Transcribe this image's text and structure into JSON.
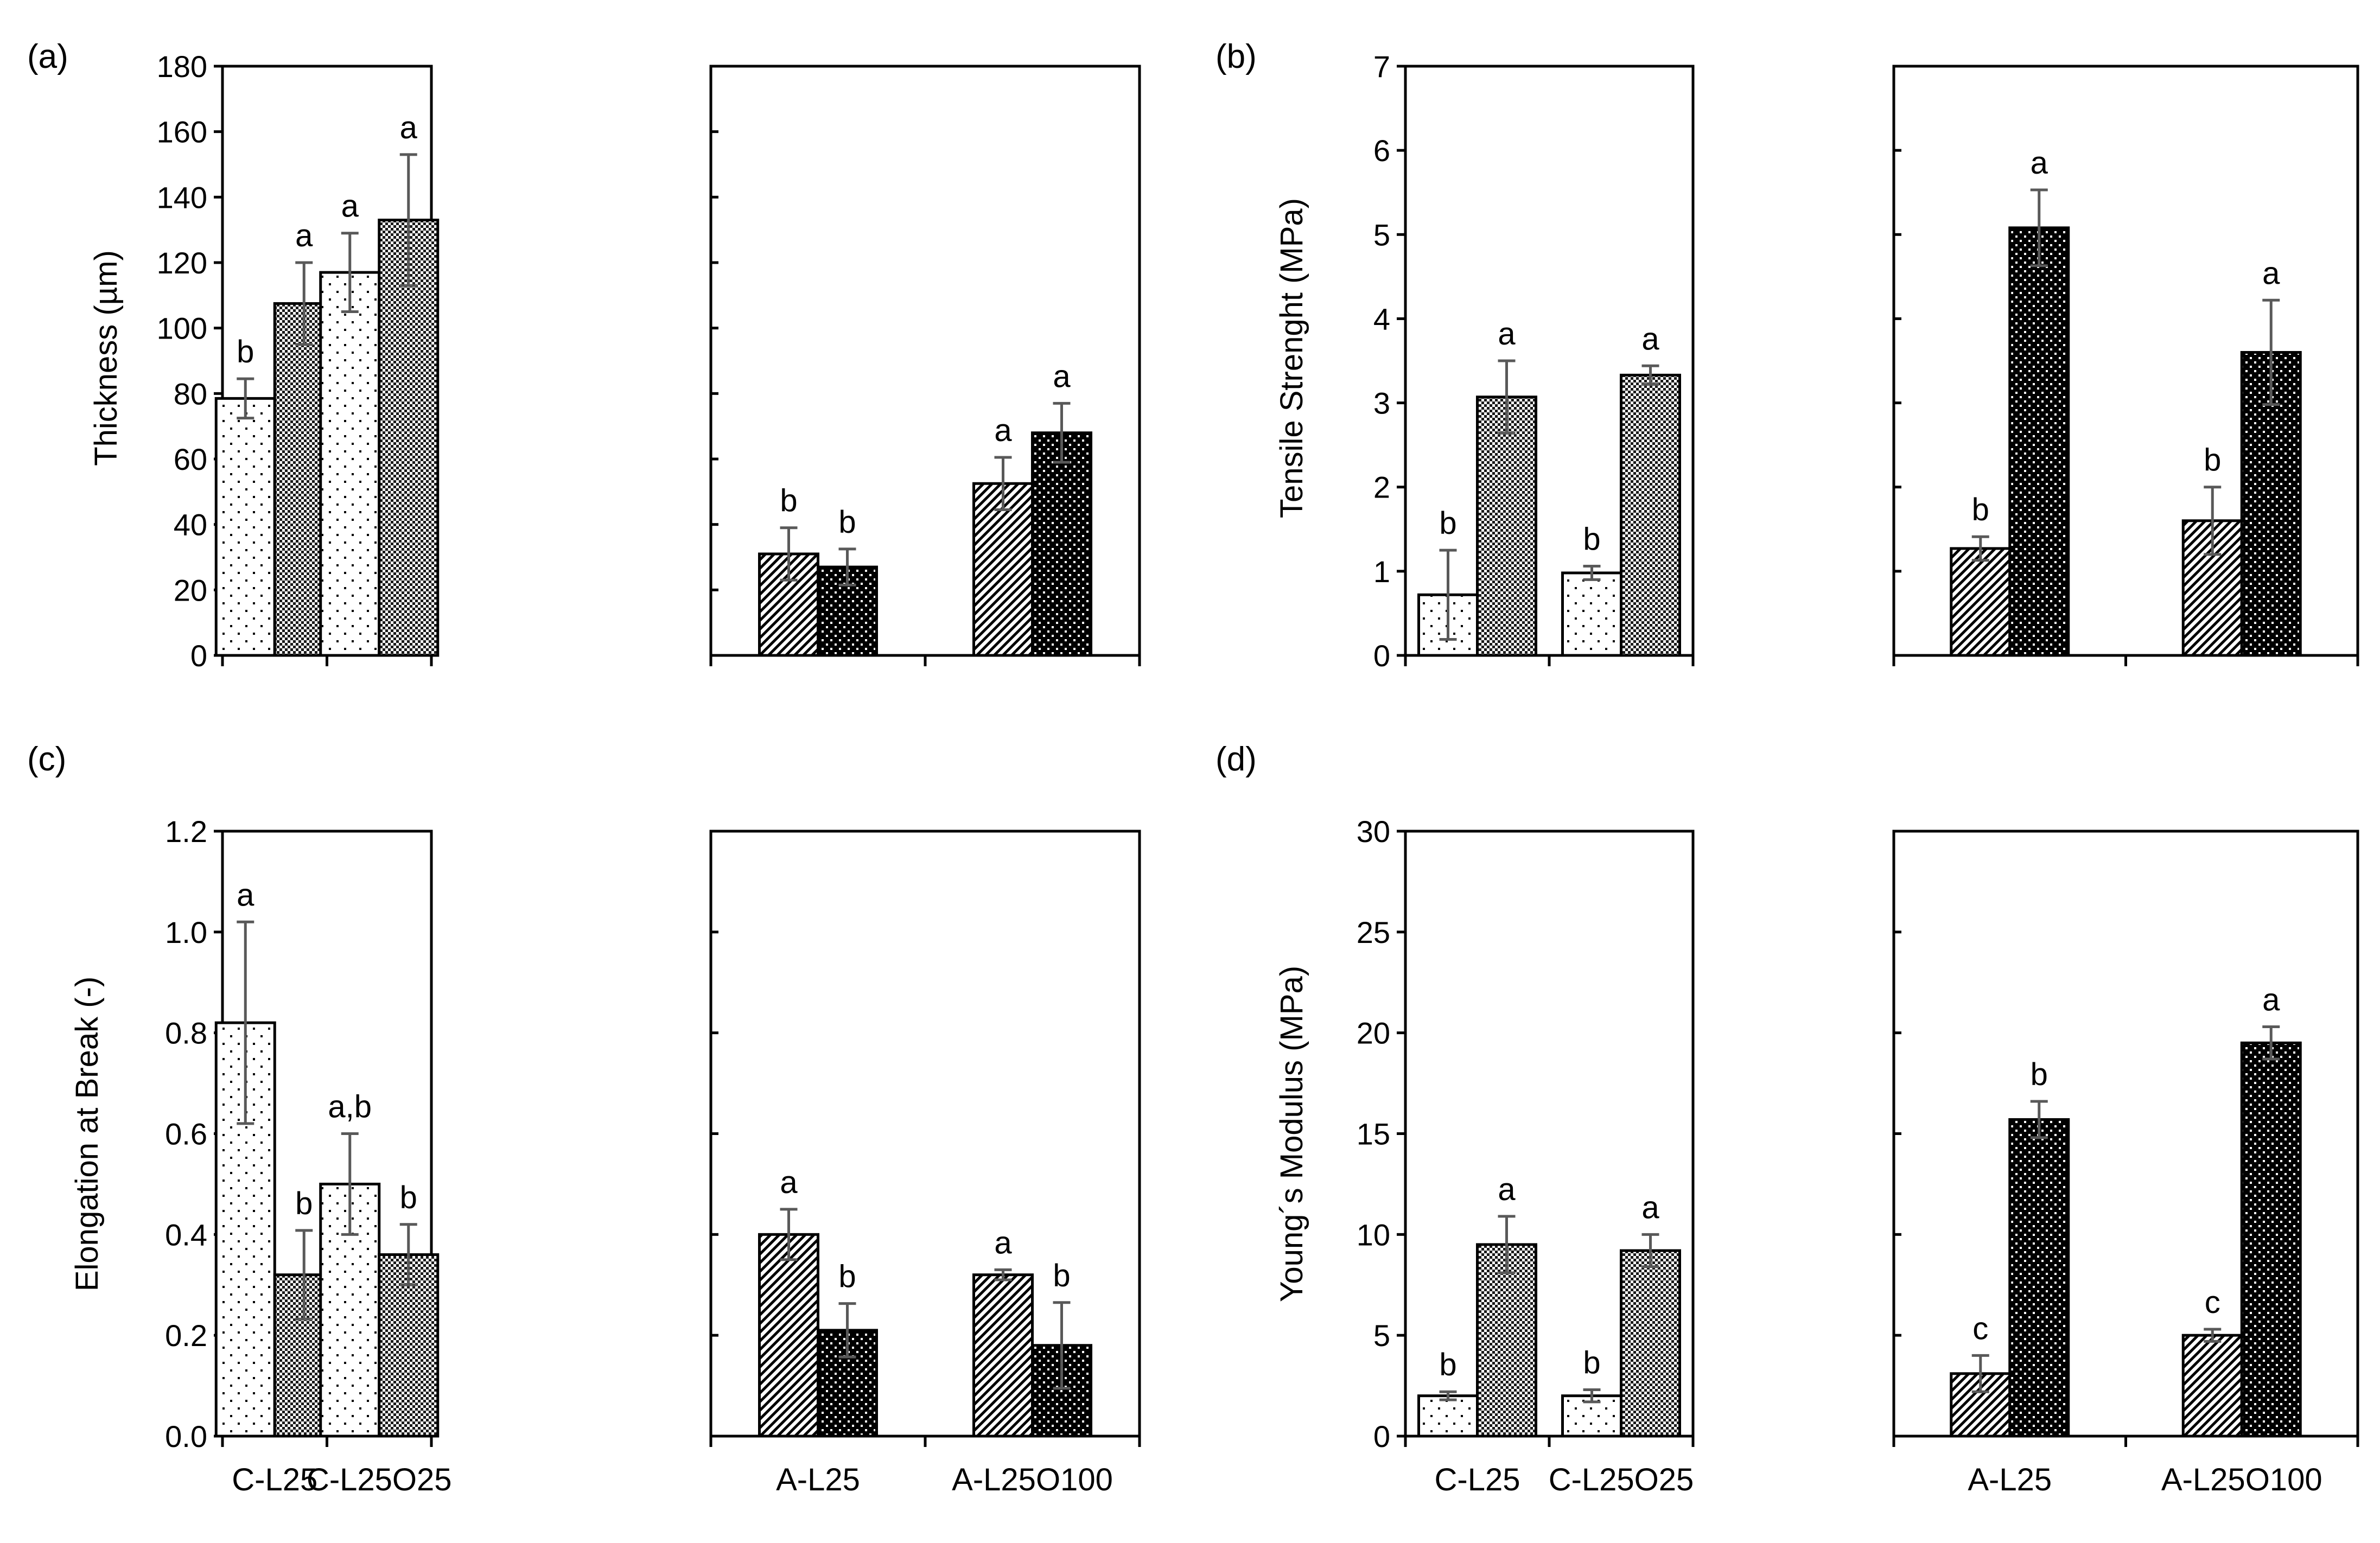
{
  "panel_labels": [
    "(a)",
    "(b)",
    "(c)",
    "(d)"
  ],
  "colors": {
    "axis": "#000000",
    "errorbar": "#595959",
    "fill": "#ffffff",
    "ink": "#000000"
  },
  "legend": {
    "patterns": [
      "dots-sparse",
      "checker-grey",
      "diagonal-hatch",
      "dots-dense-black"
    ],
    "meaning": "Bar fill patterns distinguish film series; no legend text shown"
  },
  "chart_data": [
    {
      "panel": "(a)",
      "type": "bar",
      "ylabel": "Thickness (µm)",
      "ylim": [
        0,
        180
      ],
      "yticks": [
        "0",
        "20",
        "40",
        "60",
        "80",
        "100",
        "120",
        "140",
        "160",
        "180"
      ],
      "groups": [
        {
          "categories": [
            "C-L25",
            "C-L25O25"
          ],
          "category_labels_shown": false,
          "bars": [
            {
              "category": "C-L25",
              "pattern": "dots-sparse",
              "value": 78.5,
              "error": 6,
              "letter": "b"
            },
            {
              "category": "C-L25",
              "pattern": "checker-grey",
              "value": 107.5,
              "error": 12.5,
              "letter": "a"
            },
            {
              "category": "C-L25O25",
              "pattern": "dots-sparse",
              "value": 117,
              "error": 12,
              "letter": "a"
            },
            {
              "category": "C-L25O25",
              "pattern": "checker-grey",
              "value": 133,
              "error": 20,
              "letter": "a"
            }
          ]
        },
        {
          "categories": [
            "A-L25",
            "A-L25O100"
          ],
          "category_labels_shown": false,
          "bars": [
            {
              "category": "A-L25",
              "pattern": "diagonal-hatch",
              "value": 31,
              "error": 8,
              "letter": "b"
            },
            {
              "category": "A-L25",
              "pattern": "dots-dense-black",
              "value": 27,
              "error": 5.5,
              "letter": "b"
            },
            {
              "category": "A-L25O100",
              "pattern": "diagonal-hatch",
              "value": 52.5,
              "error": 8,
              "letter": "a"
            },
            {
              "category": "A-L25O100",
              "pattern": "dots-dense-black",
              "value": 68,
              "error": 9,
              "letter": "a"
            }
          ]
        }
      ]
    },
    {
      "panel": "(b)",
      "type": "bar",
      "ylabel": "Tensile Strenght (MPa)",
      "ylim": [
        0,
        7
      ],
      "yticks": [
        "0",
        "1",
        "2",
        "3",
        "4",
        "5",
        "6",
        "7"
      ],
      "groups": [
        {
          "categories": [
            "C-L25",
            "C-L25O25"
          ],
          "category_labels_shown": false,
          "bars": [
            {
              "category": "C-L25",
              "pattern": "dots-sparse",
              "value": 0.72,
              "error": 0.53,
              "letter": "b"
            },
            {
              "category": "C-L25",
              "pattern": "checker-grey",
              "value": 3.07,
              "error": 0.43,
              "letter": "a"
            },
            {
              "category": "C-L25O25",
              "pattern": "dots-sparse",
              "value": 0.98,
              "error": 0.08,
              "letter": "b"
            },
            {
              "category": "C-L25O25",
              "pattern": "checker-grey",
              "value": 3.33,
              "error": 0.11,
              "letter": "a"
            }
          ]
        },
        {
          "categories": [
            "A-L25",
            "A-L25O100"
          ],
          "category_labels_shown": false,
          "bars": [
            {
              "category": "A-L25",
              "pattern": "diagonal-hatch",
              "value": 1.27,
              "error": 0.14,
              "letter": "b"
            },
            {
              "category": "A-L25",
              "pattern": "dots-dense-black",
              "value": 5.08,
              "error": 0.45,
              "letter": "a"
            },
            {
              "category": "A-L25O100",
              "pattern": "diagonal-hatch",
              "value": 1.6,
              "error": 0.4,
              "letter": "b"
            },
            {
              "category": "A-L25O100",
              "pattern": "dots-dense-black",
              "value": 3.6,
              "error": 0.62,
              "letter": "a"
            }
          ]
        }
      ]
    },
    {
      "panel": "(c)",
      "type": "bar",
      "ylabel": "Elongation at Break (-)",
      "ylim": [
        0,
        1.2
      ],
      "yticks": [
        "0.0",
        "0.2",
        "0.4",
        "0.6",
        "0.8",
        "1.0",
        "1.2"
      ],
      "groups": [
        {
          "categories": [
            "C-L25",
            "C-L25O25"
          ],
          "category_labels_shown": true,
          "bars": [
            {
              "category": "C-L25",
              "pattern": "dots-sparse",
              "value": 0.82,
              "error": 0.2,
              "letter": "a"
            },
            {
              "category": "C-L25",
              "pattern": "checker-grey",
              "value": 0.32,
              "error": 0.088,
              "letter": "b"
            },
            {
              "category": "C-L25O25",
              "pattern": "dots-sparse",
              "value": 0.5,
              "error": 0.1,
              "letter": "a,b"
            },
            {
              "category": "C-L25O25",
              "pattern": "checker-grey",
              "value": 0.36,
              "error": 0.06,
              "letter": "b"
            }
          ]
        },
        {
          "categories": [
            "A-L25",
            "A-L25O100"
          ],
          "category_labels_shown": true,
          "bars": [
            {
              "category": "A-L25",
              "pattern": "diagonal-hatch",
              "value": 0.4,
              "error": 0.05,
              "letter": "a"
            },
            {
              "category": "A-L25",
              "pattern": "dots-dense-black",
              "value": 0.21,
              "error": 0.053,
              "letter": "b"
            },
            {
              "category": "A-L25O100",
              "pattern": "diagonal-hatch",
              "value": 0.32,
              "error": 0.01,
              "letter": "a"
            },
            {
              "category": "A-L25O100",
              "pattern": "dots-dense-black",
              "value": 0.18,
              "error": 0.085,
              "letter": "b"
            }
          ]
        }
      ]
    },
    {
      "panel": "(d)",
      "type": "bar",
      "ylabel": "Young´s Modulus (MPa)",
      "ylim": [
        0,
        30
      ],
      "yticks": [
        "0",
        "5",
        "10",
        "15",
        "20",
        "25",
        "30"
      ],
      "groups": [
        {
          "categories": [
            "C-L25",
            "C-L25O25"
          ],
          "category_labels_shown": true,
          "bars": [
            {
              "category": "C-L25",
              "pattern": "dots-sparse",
              "value": 2,
              "error": 0.2,
              "letter": "b"
            },
            {
              "category": "C-L25",
              "pattern": "checker-grey",
              "value": 9.5,
              "error": 1.4,
              "letter": "a"
            },
            {
              "category": "C-L25O25",
              "pattern": "dots-sparse",
              "value": 2,
              "error": 0.3,
              "letter": "b"
            },
            {
              "category": "C-L25O25",
              "pattern": "checker-grey",
              "value": 9.2,
              "error": 0.8,
              "letter": "a"
            }
          ]
        },
        {
          "categories": [
            "A-L25",
            "A-L25O100"
          ],
          "category_labels_shown": true,
          "bars": [
            {
              "category": "A-L25",
              "pattern": "diagonal-hatch",
              "value": 3.1,
              "error": 0.9,
              "letter": "c"
            },
            {
              "category": "A-L25",
              "pattern": "dots-dense-black",
              "value": 15.7,
              "error": 0.9,
              "letter": "b"
            },
            {
              "category": "A-L25O100",
              "pattern": "diagonal-hatch",
              "value": 5,
              "error": 0.3,
              "letter": "c"
            },
            {
              "category": "A-L25O100",
              "pattern": "dots-dense-black",
              "value": 19.5,
              "error": 0.8,
              "letter": "a"
            }
          ]
        }
      ]
    }
  ]
}
